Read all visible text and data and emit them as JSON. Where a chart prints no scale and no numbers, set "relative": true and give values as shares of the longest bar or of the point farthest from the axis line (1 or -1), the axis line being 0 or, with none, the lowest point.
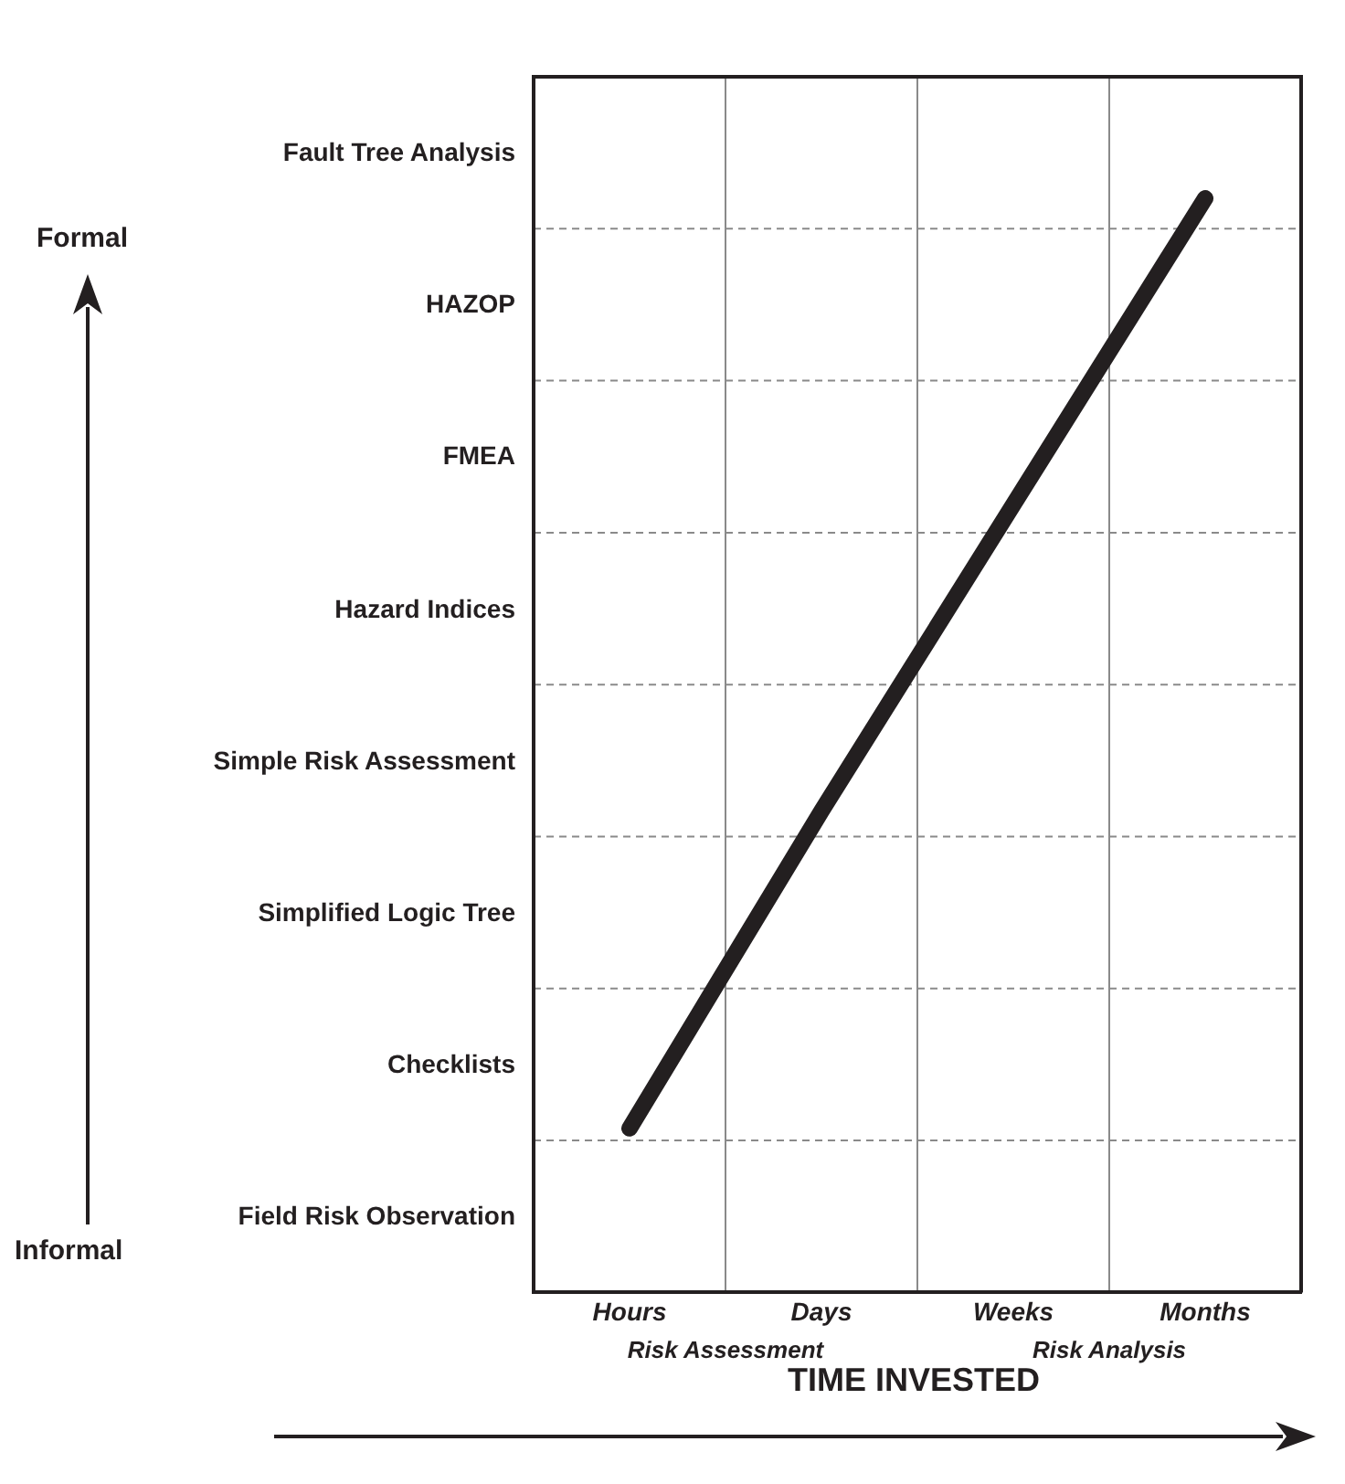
{
  "chart_data": {
    "type": "line",
    "xlabel": "TIME INVESTED",
    "annotations": [
      "Formal",
      "Fault Tree Analysis",
      "HAZOP",
      "FMEA",
      "Hazard Indices",
      "Simple Risk Assessment",
      "Simplified Logic Tree",
      "Checklists",
      "Field Risk Observation",
      "Informal",
      "Risk Assessment",
      "Risk Analysis"
    ],
    "categories": [
      "Hours",
      "Days",
      "Weeks",
      "Months"
    ],
    "relative": true,
    "grid": true,
    "series": [
      {
        "color": "#231f20",
        "values": [
          0.15,
          0.44,
          0.72,
          1
        ]
      }
    ]
  }
}
